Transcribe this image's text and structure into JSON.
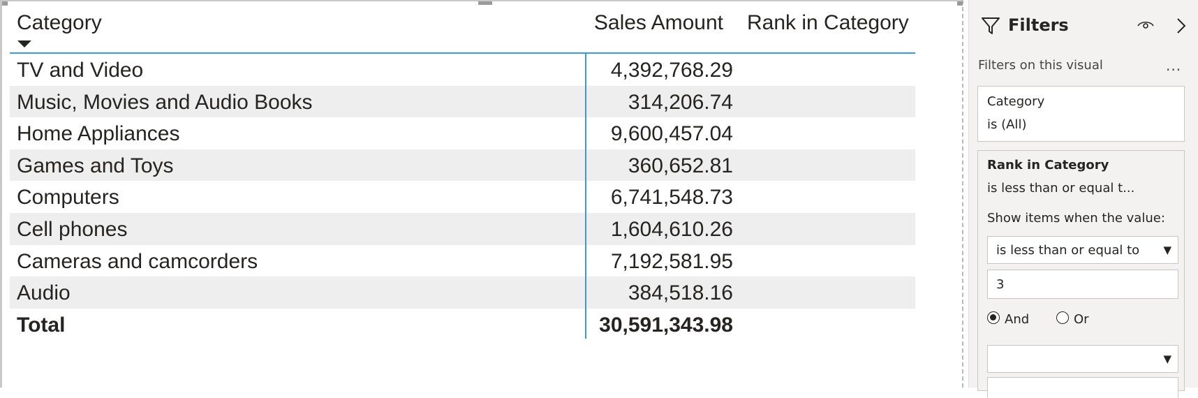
{
  "table": {
    "headers": {
      "category": "Category",
      "sales_amount": "Sales Amount",
      "rank_in_category": "Rank in Category"
    },
    "rows": [
      {
        "category": "TV and Video",
        "sales_amount": "4,392,768.29",
        "rank": ""
      },
      {
        "category": "Music, Movies and Audio Books",
        "sales_amount": "314,206.74",
        "rank": ""
      },
      {
        "category": "Home Appliances",
        "sales_amount": "9,600,457.04",
        "rank": ""
      },
      {
        "category": "Games and Toys",
        "sales_amount": "360,652.81",
        "rank": ""
      },
      {
        "category": "Computers",
        "sales_amount": "6,741,548.73",
        "rank": ""
      },
      {
        "category": "Cell phones",
        "sales_amount": "1,604,610.26",
        "rank": ""
      },
      {
        "category": "Cameras and camcorders",
        "sales_amount": "7,192,581.95",
        "rank": ""
      },
      {
        "category": "Audio",
        "sales_amount": "384,518.16",
        "rank": ""
      }
    ],
    "total": {
      "label": "Total",
      "sales_amount": "30,591,343.98"
    },
    "sort_icon": "sort-descending-icon"
  },
  "filters_pane": {
    "title": "Filters",
    "section_label": "Filters on this visual",
    "more_options": "...",
    "cards": [
      {
        "field": "Category",
        "summary": "is (All)"
      },
      {
        "field": "Rank in Category",
        "summary": "is less than or equal t...",
        "show_items_label": "Show items when the value:",
        "condition1": "is less than or equal to",
        "value1": "3",
        "logic_and": "And",
        "logic_or": "Or",
        "logic_selected": "And",
        "condition2": ""
      }
    ],
    "icons": [
      "filter-funnel-icon",
      "eye-icon",
      "chevron-right-icon",
      "dropdown-caret-icon"
    ]
  },
  "colors": {
    "accent": "#3a96dd",
    "row_band": "#eeeeee",
    "pane_bg": "#f3f2f1",
    "text": "#252423"
  }
}
